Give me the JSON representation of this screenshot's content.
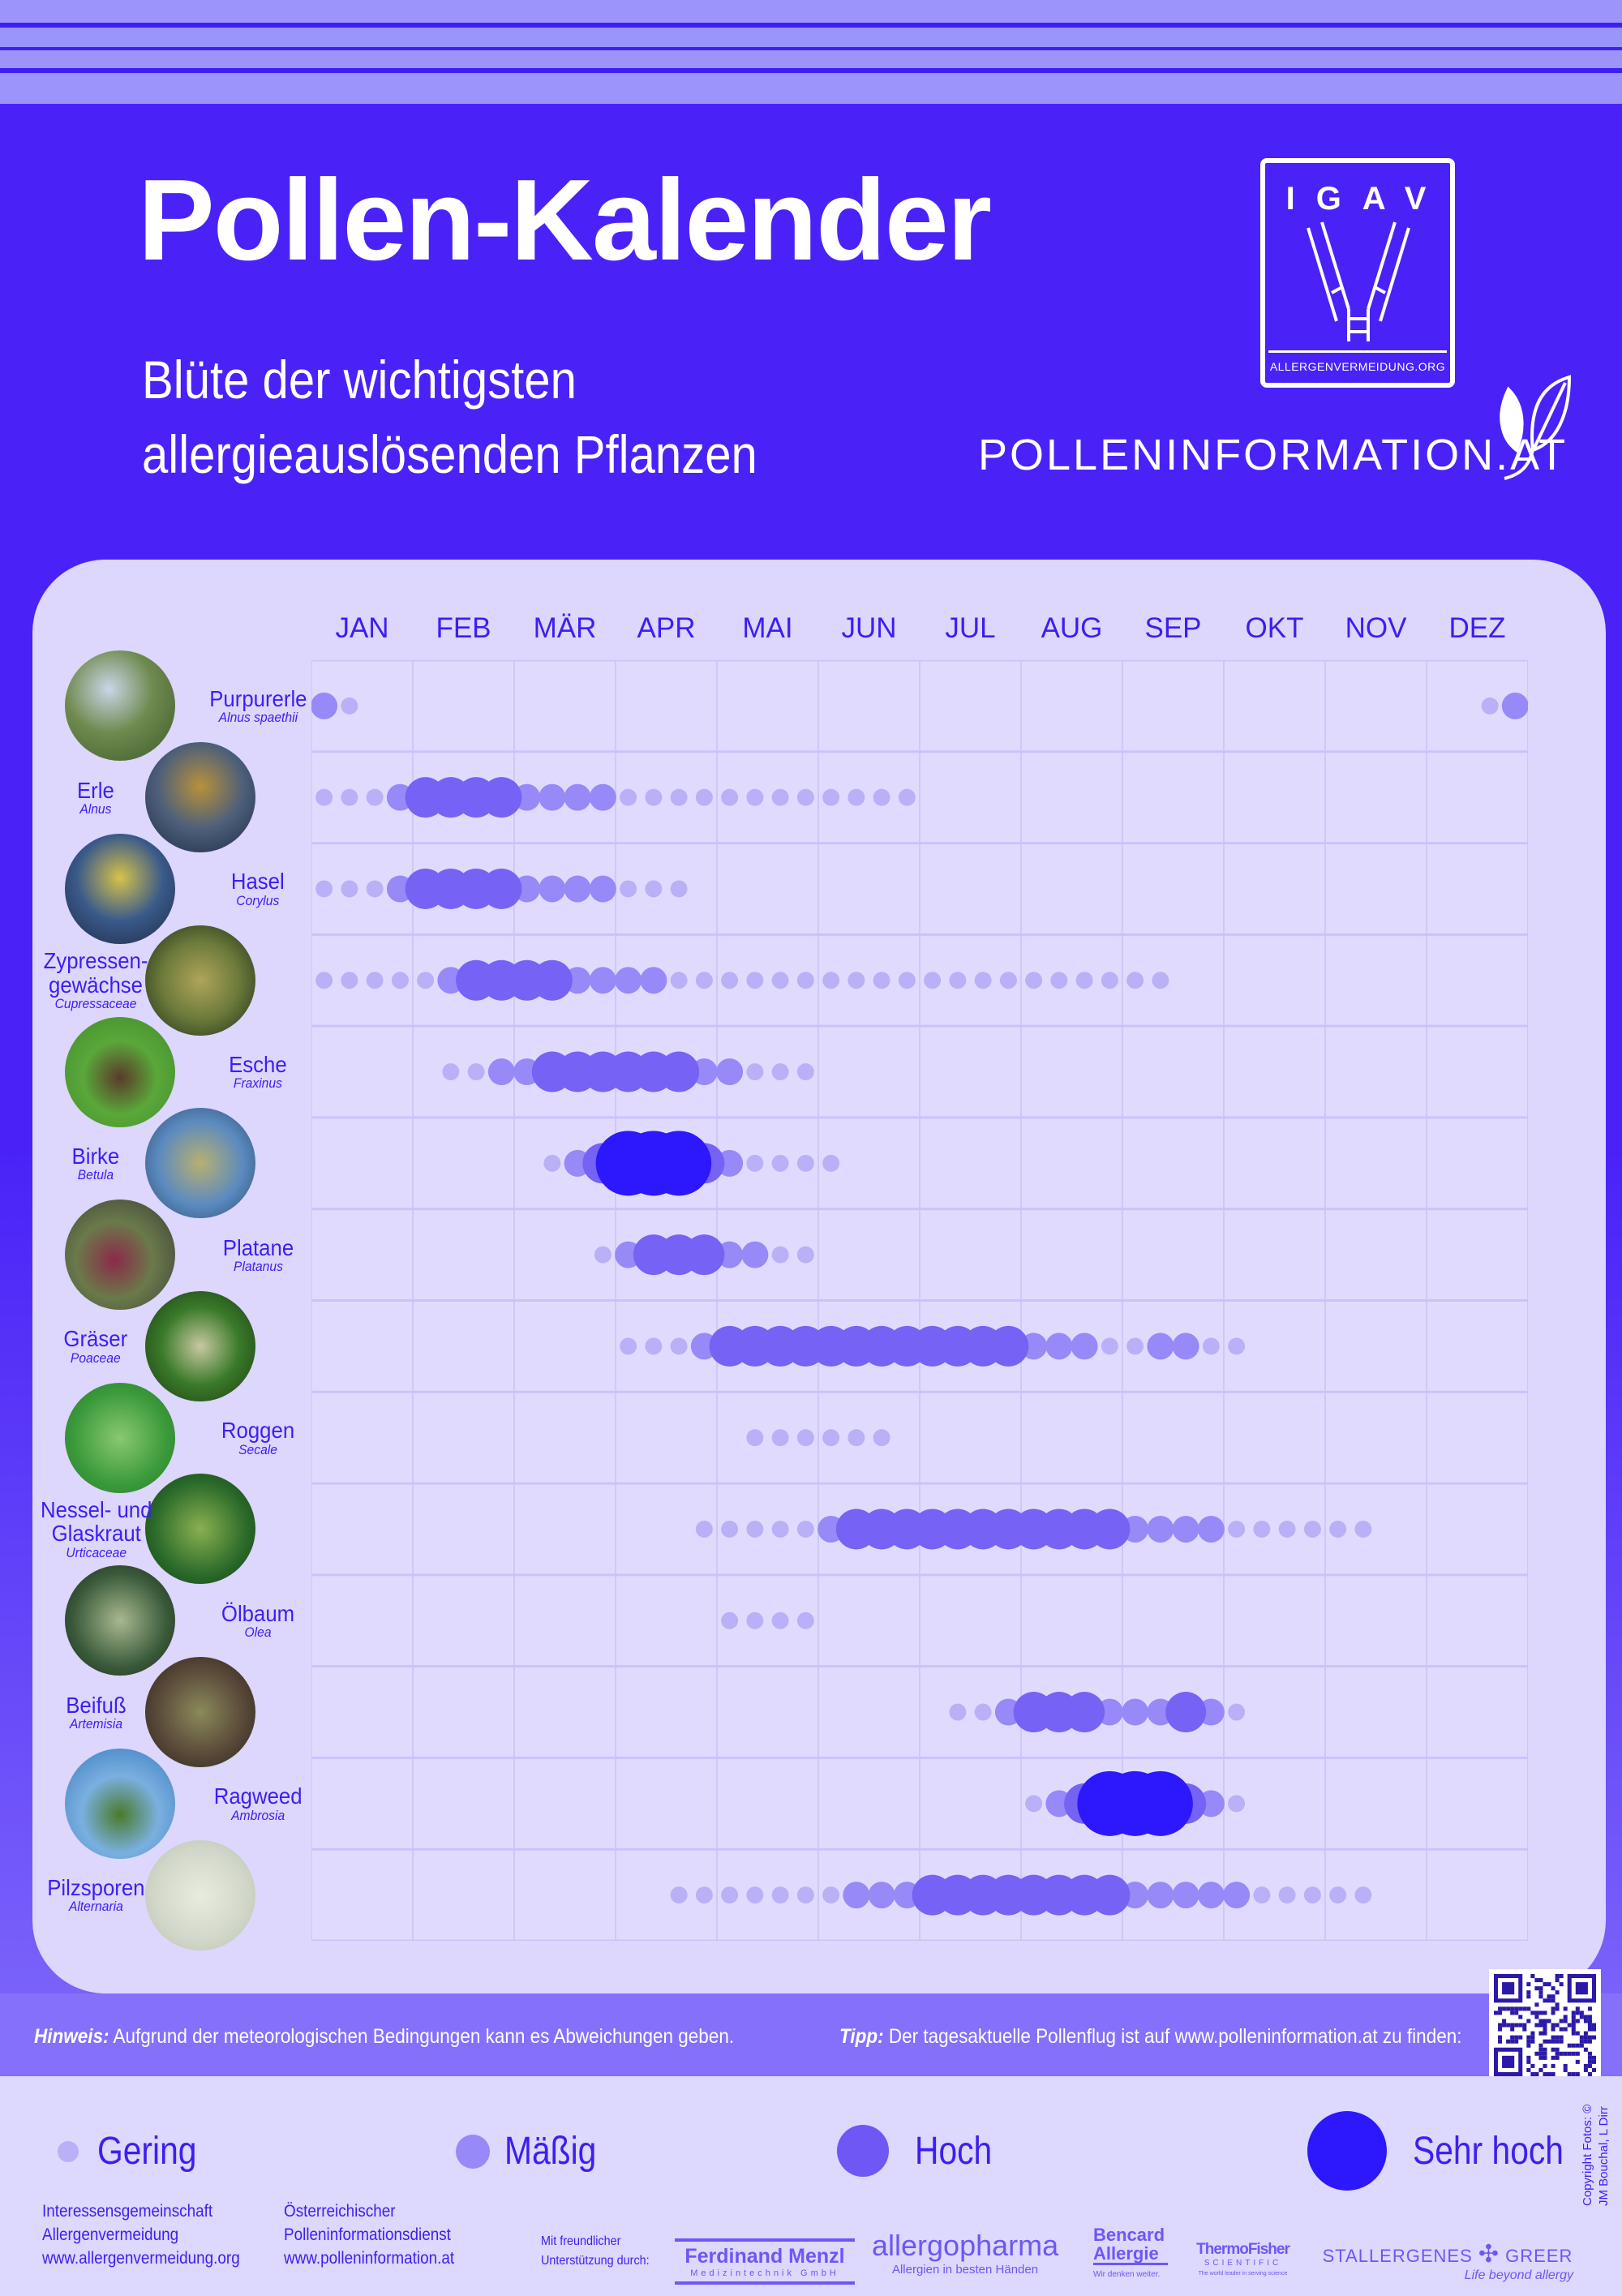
{
  "header": {
    "title": "Pollen-Kalender",
    "subtitle_lines": [
      "Blüte der wichtigsten",
      "allergieauslösenden Pflanzen"
    ],
    "logo_igav": {
      "letters": "IGAV",
      "url": "ALLERGENVERMEIDUNG.ORG"
    },
    "brand": "POLLENINFORMATION.AT"
  },
  "colors": {
    "background": "#4a22f8",
    "panel": "#ddd6fd",
    "text_accent": "#3b1ff2",
    "level_colors": [
      "#b9b0f8",
      "#9789f8",
      "#7662f4",
      "#2d17fc"
    ]
  },
  "chart_data": {
    "type": "scatter",
    "title": "",
    "categories": [
      "JAN",
      "FEB",
      "MÄR",
      "APR",
      "MAI",
      "JUN",
      "JUL",
      "AUG",
      "SEP",
      "OKT",
      "NOV",
      "DEZ"
    ],
    "x_resolution": "4 points per month",
    "level_names": [
      "Gering",
      "Mäßig",
      "Hoch",
      "Sehr hoch"
    ],
    "grid": true,
    "legend": "bottom",
    "plants": [
      {
        "name": "Purpurerle",
        "latin": "Alnus spaethii",
        "segments": [
          [
            0,
            0,
            2
          ],
          [
            1,
            1,
            1
          ],
          [
            46,
            46,
            1
          ],
          [
            47,
            47,
            2
          ]
        ]
      },
      {
        "name": "Erle",
        "latin": "Alnus",
        "segments": [
          [
            0,
            2,
            1
          ],
          [
            3,
            3,
            2
          ],
          [
            4,
            7,
            3
          ],
          [
            8,
            11,
            2
          ],
          [
            12,
            23,
            1
          ]
        ]
      },
      {
        "name": "Hasel",
        "latin": "Corylus",
        "segments": [
          [
            0,
            2,
            1
          ],
          [
            3,
            3,
            2
          ],
          [
            4,
            7,
            3
          ],
          [
            8,
            11,
            2
          ],
          [
            12,
            14,
            1
          ]
        ]
      },
      {
        "name": "Zypressen-\ngewächse",
        "latin": "Cupressaceae",
        "segments": [
          [
            0,
            4,
            1
          ],
          [
            5,
            5,
            2
          ],
          [
            6,
            9,
            3
          ],
          [
            10,
            13,
            2
          ],
          [
            14,
            33,
            1
          ]
        ]
      },
      {
        "name": "Esche",
        "latin": "Fraxinus",
        "segments": [
          [
            5,
            6,
            1
          ],
          [
            7,
            8,
            2
          ],
          [
            9,
            14,
            3
          ],
          [
            15,
            16,
            2
          ],
          [
            17,
            19,
            1
          ]
        ]
      },
      {
        "name": "Birke",
        "latin": "Betula",
        "segments": [
          [
            9,
            9,
            1
          ],
          [
            10,
            10,
            2
          ],
          [
            11,
            11,
            3
          ],
          [
            12,
            14,
            4
          ],
          [
            15,
            15,
            3
          ],
          [
            16,
            16,
            2
          ],
          [
            17,
            20,
            1
          ]
        ]
      },
      {
        "name": "Platane",
        "latin": "Platanus",
        "segments": [
          [
            11,
            11,
            1
          ],
          [
            12,
            12,
            2
          ],
          [
            13,
            15,
            3
          ],
          [
            16,
            17,
            2
          ],
          [
            18,
            19,
            1
          ]
        ]
      },
      {
        "name": "Gräser",
        "latin": "Poaceae",
        "segments": [
          [
            12,
            14,
            1
          ],
          [
            15,
            15,
            2
          ],
          [
            16,
            27,
            3
          ],
          [
            28,
            30,
            2
          ],
          [
            31,
            32,
            1
          ],
          [
            33,
            34,
            2
          ],
          [
            35,
            36,
            1
          ]
        ]
      },
      {
        "name": "Roggen",
        "latin": "Secale",
        "segments": [
          [
            17,
            22,
            1
          ]
        ]
      },
      {
        "name": "Nessel- und\nGlaskraut",
        "latin": "Urticaceae",
        "segments": [
          [
            15,
            19,
            1
          ],
          [
            20,
            20,
            2
          ],
          [
            21,
            31,
            3
          ],
          [
            32,
            35,
            2
          ],
          [
            36,
            41,
            1
          ]
        ]
      },
      {
        "name": "Ölbaum",
        "latin": "Olea",
        "segments": [
          [
            16,
            19,
            1
          ]
        ]
      },
      {
        "name": "Beifuß",
        "latin": "Artemisia",
        "segments": [
          [
            25,
            26,
            1
          ],
          [
            27,
            27,
            2
          ],
          [
            28,
            30,
            3
          ],
          [
            31,
            33,
            2
          ],
          [
            34,
            34,
            3
          ],
          [
            35,
            35,
            2
          ],
          [
            36,
            36,
            1
          ]
        ]
      },
      {
        "name": "Ragweed",
        "latin": "Ambrosia",
        "segments": [
          [
            28,
            28,
            1
          ],
          [
            29,
            29,
            2
          ],
          [
            30,
            30,
            3
          ],
          [
            31,
            33,
            4
          ],
          [
            34,
            34,
            3
          ],
          [
            35,
            35,
            2
          ],
          [
            36,
            36,
            1
          ]
        ]
      },
      {
        "name": "Pilzsporen",
        "latin": "Alternaria",
        "segments": [
          [
            14,
            20,
            1
          ],
          [
            21,
            23,
            2
          ],
          [
            24,
            31,
            3
          ],
          [
            32,
            36,
            2
          ],
          [
            37,
            41,
            1
          ]
        ]
      }
    ]
  },
  "notes": {
    "hint_label": "Hinweis:",
    "hint_text": " Aufgrund der meteorologischen Bedingungen kann es Abweichungen geben.",
    "tip_label": "Tipp:",
    "tip_text": " Der tagesaktuelle Pollenflug ist auf www.polleninformation.at zu finden:"
  },
  "legend": [
    "Gering",
    "Mäßig",
    "Hoch",
    "Sehr hoch"
  ],
  "footer": {
    "org1": [
      "Interessensgemeinschaft",
      "Allergenvermeidung",
      "www.allergenvermeidung.org"
    ],
    "org2": [
      "Österreichischer",
      "Polleninformationsdienst",
      "www.polleninformation.at"
    ],
    "support": [
      "Mit freundlicher",
      "Unterstützung durch:"
    ],
    "sponsors": {
      "menzl": "Ferdinand Menzl",
      "menzl_sub": "Medizintechnik GmbH",
      "allergopharma": "allergopharma",
      "allergopharma_sub": "Allergien in besten Händen",
      "bencard1": "Bencard",
      "bencard2": "Allergie",
      "bencard_sub": "Wir denken weiter.",
      "thermo": "ThermoFisher",
      "thermo2": "SCIENTIFIC",
      "thermo_sub": "The world leader in serving science",
      "stallergenes": "STALLERGENES",
      "greer": "GREER",
      "stallergenes_sub": "Life beyond allergy"
    },
    "copyright": [
      "Copyright Fotos: ©",
      "JM Bouchal, L Dirr"
    ]
  }
}
